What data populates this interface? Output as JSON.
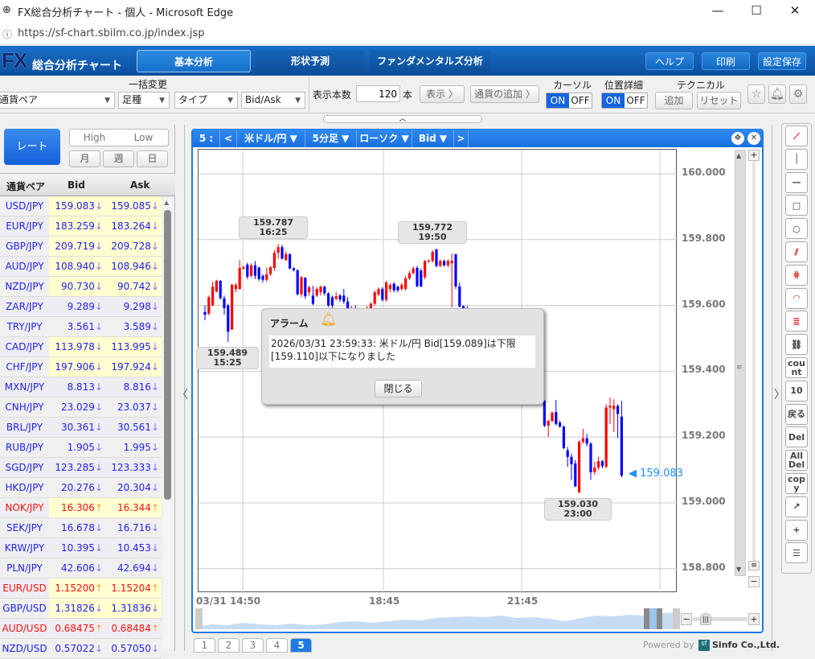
{
  "window": {
    "title": "FX総合分析チャート - 個人 - Microsoft Edge",
    "minimize": "—",
    "maximize": "☐",
    "close": "✕"
  },
  "address": {
    "url": "https://sf-chart.sbilm.co.jp/index.jsp"
  },
  "header": {
    "logo_fx": "FX",
    "logo_text": "総合分析チャート",
    "tabs": [
      {
        "label": "基本分析",
        "active": true
      },
      {
        "label": "形状予測"
      },
      {
        "label": "ファンダメンタルズ分析"
      }
    ],
    "buttons": [
      "ヘルプ",
      "印刷",
      "設定保存"
    ]
  },
  "toolbar": {
    "bulk_label": "一括変更",
    "selects": [
      "通貨ペア",
      "足種",
      "タイプ",
      "Bid/Ask"
    ],
    "count_label": "表示本数",
    "count_value": "120",
    "count_unit": "本",
    "show_button": "表示 〉",
    "add_currency_button": "通貨の追加 〉",
    "cursor": {
      "label": "カーソル",
      "on": "ON",
      "off": "OFF",
      "state": "ON"
    },
    "position_detail": {
      "label": "位置詳細",
      "on": "ON",
      "off": "OFF",
      "state": "ON"
    },
    "technical": {
      "label": "テクニカル",
      "add": "追加",
      "reset": "リセット"
    },
    "collapse": "︿"
  },
  "left": {
    "rate_button": "レート",
    "high": "High",
    "low": "Low",
    "periods": [
      "月",
      "週",
      "日"
    ],
    "headers": [
      "通貨ペア",
      "Bid",
      "Ask"
    ],
    "rows": [
      {
        "pair": "USD/JPY",
        "bid": "159.083",
        "ask": "159.085",
        "dir": "down",
        "hl": true
      },
      {
        "pair": "EUR/JPY",
        "bid": "183.259",
        "ask": "183.264",
        "dir": "down",
        "hl": true
      },
      {
        "pair": "GBP/JPY",
        "bid": "209.719",
        "ask": "209.728",
        "dir": "down",
        "hl": true
      },
      {
        "pair": "AUD/JPY",
        "bid": "108.940",
        "ask": "108.946",
        "dir": "down",
        "hl": true
      },
      {
        "pair": "NZD/JPY",
        "bid": "90.730",
        "ask": "90.742",
        "dir": "down",
        "hl": true
      },
      {
        "pair": "ZAR/JPY",
        "bid": "9.289",
        "ask": "9.298",
        "dir": "down",
        "hl": false
      },
      {
        "pair": "TRY/JPY",
        "bid": "3.561",
        "ask": "3.589",
        "dir": "down",
        "hl": false
      },
      {
        "pair": "CAD/JPY",
        "bid": "113.978",
        "ask": "113.995",
        "dir": "down",
        "hl": true
      },
      {
        "pair": "CHF/JPY",
        "bid": "197.906",
        "ask": "197.924",
        "dir": "down",
        "hl": true
      },
      {
        "pair": "MXN/JPY",
        "bid": "8.813",
        "ask": "8.816",
        "dir": "down",
        "hl": false
      },
      {
        "pair": "CNH/JPY",
        "bid": "23.029",
        "ask": "23.037",
        "dir": "down",
        "hl": false
      },
      {
        "pair": "BRL/JPY",
        "bid": "30.361",
        "ask": "30.561",
        "dir": "down",
        "hl": false
      },
      {
        "pair": "RUB/JPY",
        "bid": "1.905",
        "ask": "1.995",
        "dir": "down",
        "hl": false
      },
      {
        "pair": "SGD/JPY",
        "bid": "123.285",
        "ask": "123.333",
        "dir": "down",
        "hl": false
      },
      {
        "pair": "HKD/JPY",
        "bid": "20.276",
        "ask": "20.304",
        "dir": "down",
        "hl": false
      },
      {
        "pair": "NOK/JPY",
        "bid": "16.306",
        "ask": "16.344",
        "dir": "up",
        "hl": true
      },
      {
        "pair": "SEK/JPY",
        "bid": "16.678",
        "ask": "16.716",
        "dir": "down",
        "hl": false
      },
      {
        "pair": "KRW/JPY",
        "bid": "10.395",
        "ask": "10.453",
        "dir": "down",
        "hl": false
      },
      {
        "pair": "PLN/JPY",
        "bid": "42.606",
        "ask": "42.694",
        "dir": "down",
        "hl": false
      },
      {
        "pair": "EUR/USD",
        "bid": "1.15200",
        "ask": "1.15204",
        "dir": "up",
        "hl": true
      },
      {
        "pair": "GBP/USD",
        "bid": "1.31826",
        "ask": "1.31836",
        "dir": "down",
        "hl": true
      },
      {
        "pair": "AUD/USD",
        "bid": "0.68475",
        "ask": "0.68484",
        "dir": "up",
        "hl": false
      },
      {
        "pair": "NZD/USD",
        "bid": "0.57022",
        "ask": "0.57050",
        "dir": "down",
        "hl": false
      }
    ]
  },
  "chart": {
    "header": [
      "5 :",
      "<",
      "米ドル/円 ▼",
      "5分足 ▼",
      "ローソク ▼",
      "Bid ▼",
      ">"
    ],
    "nav_prev": "〈",
    "nav_next": "〉",
    "pages": [
      "1",
      "2",
      "3",
      "4",
      "5"
    ],
    "active_page": "5",
    "powered_by": "Powered by",
    "company": "Sinfo Co.,Ltd.",
    "last_price": "◀ 159.083"
  },
  "chart_data": {
    "type": "candlestick",
    "title": "米ドル/円 5分足 Bid",
    "y_ticks": [
      "160.000",
      "159.800",
      "159.600",
      "159.400",
      "159.200",
      "159.000",
      "158.800"
    ],
    "ylim": [
      158.75,
      160.073
    ],
    "x_ticks": [
      "03/31 14:50",
      "18:45",
      "21:45"
    ],
    "up_color": "#ff0000",
    "down_color": "#0000ff",
    "annotations": [
      {
        "price": "159.787",
        "time": "16:25",
        "index": 19
      },
      {
        "price": "159.772",
        "time": "19:50",
        "index": 60
      },
      {
        "price": "159.489",
        "time": "15:25",
        "index": 6
      },
      {
        "price": "159.030",
        "time": "23:00",
        "index": 97
      }
    ],
    "ohlc": [
      [
        159.58,
        159.6,
        159.555,
        159.572
      ],
      [
        159.575,
        159.63,
        159.57,
        159.625
      ],
      [
        159.6,
        159.672,
        159.598,
        159.657
      ],
      [
        159.642,
        159.678,
        159.64,
        159.675
      ],
      [
        159.675,
        159.677,
        159.618,
        159.622
      ],
      [
        159.622,
        159.63,
        159.572,
        159.592
      ],
      [
        159.6,
        159.605,
        159.489,
        159.52
      ],
      [
        159.527,
        159.665,
        159.525,
        159.663
      ],
      [
        159.65,
        159.668,
        159.64,
        159.662
      ],
      [
        159.65,
        159.738,
        159.648,
        159.714
      ],
      [
        159.712,
        159.72,
        159.708,
        159.716
      ],
      [
        159.724,
        159.73,
        159.68,
        159.687
      ],
      [
        159.69,
        159.728,
        159.685,
        159.722
      ],
      [
        159.722,
        159.735,
        159.68,
        159.69
      ],
      [
        159.715,
        159.718,
        159.675,
        159.68
      ],
      [
        159.69,
        159.695,
        159.67,
        159.678
      ],
      [
        159.678,
        159.715,
        159.672,
        159.695
      ],
      [
        159.695,
        159.72,
        159.69,
        159.716
      ],
      [
        159.714,
        159.768,
        159.705,
        159.76
      ],
      [
        159.76,
        159.787,
        159.742,
        159.777
      ],
      [
        159.777,
        159.784,
        159.74,
        159.742
      ],
      [
        159.738,
        159.765,
        159.735,
        159.756
      ],
      [
        159.756,
        159.758,
        159.71,
        159.712
      ],
      [
        159.713,
        159.716,
        159.703,
        159.707
      ],
      [
        159.707,
        159.71,
        159.63,
        159.634
      ],
      [
        159.634,
        159.69,
        159.625,
        159.686
      ],
      [
        159.684,
        159.686,
        159.62,
        159.628
      ],
      [
        159.64,
        159.66,
        159.63,
        159.655
      ],
      [
        159.63,
        159.66,
        159.6,
        159.605
      ],
      [
        159.63,
        159.655,
        159.625,
        159.65
      ],
      [
        159.64,
        159.66,
        159.63,
        159.657
      ],
      [
        159.657,
        159.66,
        159.63,
        159.637
      ],
      [
        159.637,
        159.64,
        159.595,
        159.6
      ],
      [
        159.625,
        159.63,
        159.592,
        159.6
      ],
      [
        159.62,
        159.64,
        159.615,
        159.628
      ],
      [
        159.63,
        159.635,
        159.61,
        159.618
      ],
      [
        159.63,
        159.65,
        159.605,
        159.612
      ],
      [
        159.612,
        159.625,
        159.57,
        159.59
      ],
      [
        159.575,
        159.598,
        159.565,
        159.59
      ],
      [
        159.59,
        159.6,
        159.56,
        159.572
      ],
      [
        159.572,
        159.592,
        159.565,
        159.585
      ],
      [
        159.585,
        159.59,
        159.56,
        159.57
      ],
      [
        159.57,
        159.598,
        159.565,
        159.592
      ],
      [
        159.592,
        159.61,
        159.588,
        159.605
      ],
      [
        159.605,
        159.645,
        159.6,
        159.64
      ],
      [
        159.633,
        159.655,
        159.628,
        159.65
      ],
      [
        159.65,
        159.655,
        159.612,
        159.617
      ],
      [
        159.617,
        159.675,
        159.612,
        159.67
      ],
      [
        159.65,
        159.668,
        159.64,
        159.662
      ],
      [
        159.666,
        159.67,
        159.64,
        159.646
      ],
      [
        159.657,
        159.66,
        159.64,
        159.646
      ],
      [
        159.65,
        159.668,
        159.645,
        159.662
      ],
      [
        159.65,
        159.69,
        159.645,
        159.682
      ],
      [
        159.682,
        159.705,
        159.678,
        159.698
      ],
      [
        159.698,
        159.718,
        159.695,
        159.712
      ],
      [
        159.714,
        159.72,
        159.655,
        159.658
      ],
      [
        159.706,
        159.712,
        159.655,
        159.658
      ],
      [
        159.686,
        159.738,
        159.68,
        159.735
      ],
      [
        159.734,
        159.74,
        159.73,
        159.736
      ],
      [
        159.735,
        159.768,
        159.73,
        159.763
      ],
      [
        159.77,
        159.772,
        159.716,
        159.72
      ],
      [
        159.72,
        159.74,
        159.716,
        159.735
      ],
      [
        159.735,
        159.74,
        159.718,
        159.722
      ],
      [
        159.722,
        159.74,
        159.716,
        159.735
      ],
      [
        159.728,
        159.758,
        159.594,
        159.736
      ],
      [
        159.755,
        159.758,
        159.65,
        159.658
      ],
      [
        159.658,
        159.67,
        159.594,
        159.597
      ],
      [
        159.598,
        159.6,
        159.585,
        159.592
      ],
      [
        159.592,
        159.598,
        159.565,
        159.57
      ],
      [
        159.57,
        159.586,
        159.566,
        159.58
      ],
      [
        159.58,
        159.584,
        159.546,
        159.55
      ],
      [
        159.55,
        159.556,
        159.53,
        159.535
      ],
      [
        159.535,
        159.552,
        159.531,
        159.548
      ],
      [
        159.548,
        159.551,
        159.516,
        159.52
      ],
      [
        159.52,
        159.525,
        159.496,
        159.5
      ],
      [
        159.5,
        159.516,
        159.495,
        159.512
      ],
      [
        159.512,
        159.515,
        159.476,
        159.48
      ],
      [
        159.48,
        159.486,
        159.466,
        159.47
      ],
      [
        159.47,
        159.49,
        159.466,
        159.485
      ],
      [
        159.485,
        159.488,
        159.446,
        159.45
      ],
      [
        159.45,
        159.455,
        159.425,
        159.43
      ],
      [
        159.43,
        159.446,
        159.426,
        159.44
      ],
      [
        159.44,
        159.443,
        159.401,
        159.405
      ],
      [
        159.405,
        159.41,
        159.375,
        159.38
      ],
      [
        159.38,
        159.396,
        159.376,
        159.392
      ],
      [
        159.392,
        159.395,
        159.356,
        159.36
      ],
      [
        159.36,
        159.366,
        159.33,
        159.335
      ],
      [
        159.335,
        159.34,
        159.306,
        159.31
      ],
      [
        159.31,
        159.312,
        159.23,
        159.235
      ],
      [
        159.235,
        159.252,
        159.2,
        159.249
      ],
      [
        159.249,
        159.278,
        159.245,
        159.274
      ],
      [
        159.276,
        159.313,
        159.235,
        159.24
      ],
      [
        159.244,
        159.25,
        159.228,
        159.232
      ],
      [
        159.232,
        159.235,
        159.164,
        159.166
      ],
      [
        159.16,
        159.17,
        159.11,
        159.14
      ],
      [
        159.14,
        159.15,
        159.07,
        159.118
      ],
      [
        159.12,
        159.13,
        159.048,
        159.05
      ],
      [
        159.032,
        159.19,
        159.03,
        159.186
      ],
      [
        159.186,
        159.225,
        159.18,
        159.196
      ],
      [
        159.196,
        159.21,
        159.172,
        159.18
      ],
      [
        159.18,
        159.185,
        159.07,
        159.093
      ],
      [
        159.093,
        159.125,
        159.085,
        159.107
      ],
      [
        159.107,
        159.14,
        159.1,
        159.127
      ],
      [
        159.127,
        159.13,
        159.105,
        159.112
      ],
      [
        159.11,
        159.3,
        159.105,
        159.29
      ],
      [
        159.29,
        159.32,
        159.24,
        159.295
      ],
      [
        159.285,
        159.315,
        159.215,
        159.295
      ],
      [
        159.295,
        159.3,
        159.197,
        159.27
      ],
      [
        159.262,
        159.31,
        159.078,
        159.083
      ]
    ]
  },
  "alarm": {
    "title": "アラーム",
    "message": "2026/03/31 23:59:33: 米ドル/円 Bid[159.089]は下限[159.110]以下になりました",
    "close_button": "閉じる"
  },
  "tools": [
    {
      "icon": "trendline-icon"
    },
    {
      "icon": "vertical-line-icon"
    },
    {
      "icon": "horizontal-line-icon"
    },
    {
      "icon": "rectangle-icon"
    },
    {
      "icon": "circle-icon"
    },
    {
      "icon": "fibonacci-fan-icon"
    },
    {
      "icon": "gann-icon"
    },
    {
      "icon": "fibonacci-arc-icon"
    },
    {
      "icon": "fibonacci-retracement-icon"
    },
    {
      "icon": "chain-icon"
    },
    {
      "icon": "count-icon",
      "label": "count"
    },
    {
      "icon": "candle-count-icon",
      "label": "10"
    },
    {
      "icon": "back-icon",
      "label": "戻る"
    },
    {
      "icon": "delete-icon",
      "label": "Del"
    },
    {
      "icon": "delete-all-icon",
      "label": "All Del"
    },
    {
      "icon": "copy-icon",
      "label": "copy"
    },
    {
      "icon": "arrow-icon",
      "label": "↗"
    },
    {
      "icon": "crosshair-icon",
      "label": "+"
    },
    {
      "icon": "list-icon",
      "label": "☰"
    }
  ]
}
